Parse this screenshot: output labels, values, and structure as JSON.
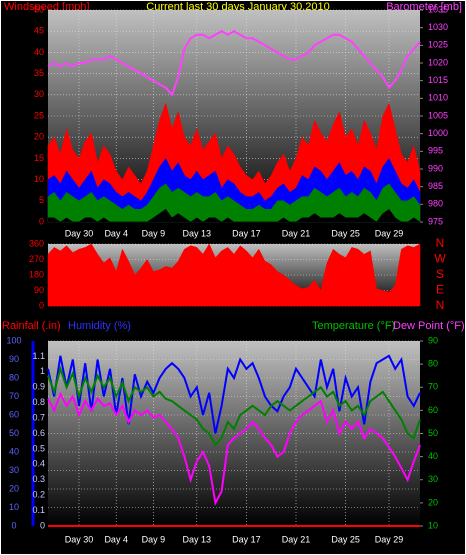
{
  "chart_data": [
    {
      "type": "area",
      "title": "Current last 30 days January 30,2010",
      "y_label": "Windspeed [mph]",
      "y2_label": "Barometer [mb]",
      "xlim": [
        0,
        60
      ],
      "xticks": [
        {
          "value": 5,
          "label": "Day 30"
        },
        {
          "value": 11,
          "label": "Day 4"
        },
        {
          "value": 17,
          "label": "Day 9"
        },
        {
          "value": 24,
          "label": "Day 13"
        },
        {
          "value": 32,
          "label": "Day 17"
        },
        {
          "value": 40,
          "label": "Day 21"
        },
        {
          "value": 48,
          "label": "Day 25"
        },
        {
          "value": 55,
          "label": "Day 29"
        }
      ],
      "ylim": [
        0,
        50
      ],
      "yticks": [
        0,
        5,
        10,
        15,
        20,
        25,
        30,
        35,
        40,
        45,
        50
      ],
      "y2lim": [
        975,
        1035
      ],
      "y2ticks": [
        975,
        980,
        985,
        990,
        995,
        1000,
        1005,
        1010,
        1015,
        1020,
        1025,
        1030,
        1035
      ],
      "grid": true,
      "series": [
        {
          "color": "#ff0000",
          "values": [
            18,
            20,
            16,
            22,
            17,
            15,
            19,
            21,
            14,
            18,
            16,
            12,
            10,
            13,
            11,
            9,
            12,
            18,
            24,
            28,
            22,
            26,
            20,
            18,
            22,
            17,
            19,
            21,
            15,
            18,
            16,
            13,
            11,
            10,
            12,
            9,
            11,
            14,
            16,
            12,
            15,
            20,
            18,
            24,
            21,
            19,
            23,
            26,
            20,
            22,
            18,
            24,
            21,
            17,
            25,
            28,
            22,
            16,
            14,
            18,
            12
          ]
        },
        {
          "color": "#0000ff",
          "values": [
            10,
            11,
            9,
            12,
            10,
            8,
            10,
            12,
            8,
            10,
            9,
            7,
            6,
            7,
            6,
            5,
            7,
            10,
            13,
            15,
            12,
            14,
            11,
            10,
            12,
            10,
            11,
            12,
            8,
            10,
            9,
            7,
            6,
            6,
            7,
            5,
            6,
            8,
            9,
            7,
            8,
            11,
            10,
            13,
            12,
            10,
            12,
            14,
            11,
            12,
            10,
            13,
            12,
            9,
            13,
            15,
            12,
            9,
            8,
            10,
            7
          ]
        },
        {
          "color": "#008000",
          "values": [
            6,
            7,
            5,
            7,
            6,
            5,
            6,
            7,
            5,
            6,
            5,
            4,
            3,
            4,
            3,
            3,
            4,
            6,
            8,
            9,
            7,
            8,
            7,
            6,
            7,
            6,
            6,
            7,
            5,
            6,
            5,
            4,
            3,
            3,
            4,
            3,
            3,
            5,
            5,
            4,
            5,
            6,
            6,
            8,
            7,
            6,
            7,
            8,
            6,
            7,
            6,
            8,
            7,
            5,
            8,
            9,
            7,
            5,
            5,
            6,
            4
          ]
        },
        {
          "color": "#000000",
          "values": [
            1,
            1,
            0,
            1,
            0,
            0,
            1,
            1,
            0,
            1,
            0,
            0,
            0,
            0,
            0,
            0,
            0,
            1,
            2,
            3,
            1,
            2,
            1,
            0,
            1,
            0,
            1,
            1,
            0,
            1,
            0,
            0,
            0,
            0,
            0,
            0,
            0,
            0,
            1,
            0,
            0,
            1,
            1,
            2,
            1,
            1,
            1,
            2,
            1,
            1,
            1,
            2,
            1,
            0,
            2,
            3,
            1,
            0,
            0,
            1,
            0
          ]
        },
        {
          "color": "#ff40ff",
          "axis": "y2",
          "values": [
            1019,
            1020,
            1019,
            1020,
            1019,
            1020,
            1020,
            1021,
            1021,
            1021,
            1022,
            1021,
            1020,
            1019,
            1018,
            1017,
            1016,
            1015,
            1014,
            1013,
            1011,
            1016,
            1024,
            1027,
            1028,
            1028,
            1027,
            1028,
            1029,
            1028,
            1029,
            1028,
            1027,
            1027,
            1026,
            1025,
            1024,
            1023,
            1022,
            1021,
            1021,
            1022,
            1023,
            1025,
            1026,
            1027,
            1028,
            1028,
            1027,
            1026,
            1024,
            1022,
            1020,
            1018,
            1016,
            1013,
            1015,
            1018,
            1022,
            1024,
            1026
          ]
        }
      ]
    },
    {
      "type": "area",
      "xlim": [
        0,
        60
      ],
      "ylim": [
        0,
        360
      ],
      "yticks": [
        0,
        90,
        180,
        270,
        360
      ],
      "compass_labels": [
        "N",
        "W",
        "S",
        "E",
        "N"
      ],
      "grid": true,
      "series": [
        {
          "color": "#ff0000",
          "values": [
            300,
            340,
            320,
            350,
            310,
            330,
            340,
            360,
            300,
            250,
            280,
            200,
            330,
            260,
            180,
            220,
            270,
            200,
            210,
            230,
            220,
            260,
            330,
            350,
            340,
            300,
            360,
            280,
            320,
            340,
            300,
            350,
            320,
            280,
            330,
            260,
            240,
            200,
            180,
            150,
            120,
            100,
            110,
            150,
            90,
            250,
            330,
            300,
            280,
            340,
            330,
            300,
            320,
            100,
            90,
            80,
            120,
            330,
            350,
            340,
            360
          ]
        }
      ]
    },
    {
      "type": "line",
      "axis_labels": [
        "Rainfall (.in)",
        "Humidity (%)",
        "Temperature (°F)",
        "Dew Point (°F)"
      ],
      "xlim": [
        0,
        60
      ],
      "xticks": [
        {
          "value": 5,
          "label": "Day 30"
        },
        {
          "value": 11,
          "label": "Day 4"
        },
        {
          "value": 17,
          "label": "Day 9"
        },
        {
          "value": 24,
          "label": "Day 13"
        },
        {
          "value": 32,
          "label": "Day 17"
        },
        {
          "value": 40,
          "label": "Day 21"
        },
        {
          "value": 48,
          "label": "Day 25"
        },
        {
          "value": 55,
          "label": "Day 29"
        }
      ],
      "ylim": [
        0,
        100
      ],
      "yticks": [
        0,
        10,
        20,
        30,
        40,
        50,
        60,
        70,
        80,
        90,
        100
      ],
      "rain_lim": [
        0,
        1.2
      ],
      "rain_ticks": [
        0,
        0.1,
        0.2,
        0.3,
        0.4,
        0.5,
        0.6,
        0.7,
        0.8,
        0.9,
        1,
        1.1
      ],
      "y2lim": [
        10,
        90
      ],
      "y2ticks": [
        10,
        20,
        30,
        40,
        50,
        60,
        70,
        80,
        90
      ],
      "grid": true,
      "series": [
        {
          "color": "#ff0000",
          "axis": "rain",
          "values": [
            0,
            0,
            0,
            0,
            0,
            0,
            0,
            0,
            0,
            0,
            0,
            0,
            0,
            0,
            0,
            0,
            0,
            0,
            0,
            0,
            0,
            0,
            0,
            0,
            0,
            0,
            0,
            0,
            0,
            0,
            0,
            0,
            0,
            0,
            0,
            0,
            0,
            0,
            0,
            0,
            0,
            0,
            0,
            0,
            0,
            0,
            0,
            0,
            0,
            0,
            0,
            0,
            0,
            0,
            0,
            0,
            0,
            0,
            0,
            0,
            0
          ]
        },
        {
          "color": "#0000ff",
          "values": [
            85,
            70,
            92,
            75,
            90,
            65,
            88,
            62,
            90,
            70,
            85,
            60,
            80,
            55,
            82,
            70,
            78,
            72,
            80,
            85,
            88,
            85,
            80,
            70,
            75,
            60,
            72,
            50,
            65,
            85,
            80,
            90,
            85,
            88,
            80,
            70,
            65,
            62,
            70,
            75,
            85,
            80,
            75,
            70,
            90,
            75,
            85,
            62,
            80,
            70,
            75,
            55,
            78,
            88,
            90,
            92,
            85,
            90,
            70,
            65,
            72
          ]
        },
        {
          "color": "#008000",
          "axis": "y2",
          "values": [
            75,
            68,
            78,
            70,
            76,
            66,
            74,
            68,
            75,
            70,
            74,
            66,
            72,
            64,
            70,
            68,
            70,
            66,
            68,
            65,
            64,
            62,
            60,
            58,
            56,
            52,
            50,
            45,
            48,
            55,
            52,
            58,
            60,
            62,
            60,
            58,
            62,
            64,
            62,
            60,
            62,
            64,
            66,
            68,
            70,
            66,
            68,
            62,
            64,
            60,
            62,
            58,
            64,
            66,
            68,
            64,
            60,
            56,
            50,
            48,
            56
          ]
        },
        {
          "color": "#ff00ff",
          "axis": "y2",
          "values": [
            65,
            60,
            67,
            62,
            66,
            58,
            64,
            60,
            65,
            62,
            63,
            58,
            62,
            55,
            60,
            58,
            60,
            57,
            58,
            55,
            52,
            48,
            40,
            30,
            38,
            42,
            36,
            20,
            25,
            45,
            48,
            50,
            52,
            55,
            52,
            48,
            45,
            40,
            42,
            50,
            55,
            58,
            60,
            62,
            64,
            55,
            60,
            50,
            55,
            52,
            55,
            48,
            52,
            50,
            48,
            44,
            40,
            35,
            30,
            38,
            45
          ]
        }
      ]
    }
  ]
}
